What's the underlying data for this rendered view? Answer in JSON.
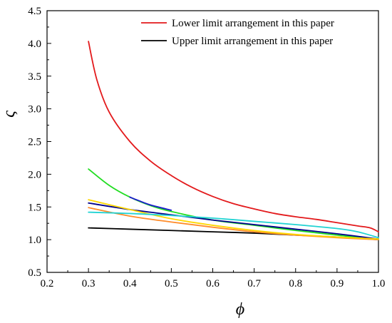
{
  "chart_data": {
    "type": "line",
    "title": "",
    "xlabel": "ϕ",
    "ylabel": "ς",
    "xlim": [
      0.2,
      1.0
    ],
    "ylim": [
      0.5,
      4.5
    ],
    "x_ticks": [
      "0.2",
      "0.3",
      "0.4",
      "0.5",
      "0.6",
      "0.7",
      "0.8",
      "0.9",
      "1.0"
    ],
    "y_ticks": [
      "0.5",
      "1.0",
      "1.5",
      "2.0",
      "2.5",
      "3.0",
      "3.5",
      "4.0",
      "4.5"
    ],
    "legend_position": "top-right",
    "grid": false,
    "series": [
      {
        "name": "Lower limit arrangement in this paper",
        "color": "#e31a1c",
        "in_legend": true,
        "points": [
          [
            0.3,
            4.03
          ],
          [
            0.32,
            3.45
          ],
          [
            0.35,
            2.95
          ],
          [
            0.4,
            2.5
          ],
          [
            0.45,
            2.2
          ],
          [
            0.5,
            1.98
          ],
          [
            0.55,
            1.8
          ],
          [
            0.6,
            1.66
          ],
          [
            0.65,
            1.55
          ],
          [
            0.7,
            1.47
          ],
          [
            0.75,
            1.4
          ],
          [
            0.8,
            1.35
          ],
          [
            0.85,
            1.31
          ],
          [
            0.9,
            1.26
          ],
          [
            0.95,
            1.21
          ],
          [
            0.98,
            1.18
          ],
          [
            1.0,
            1.12
          ]
        ]
      },
      {
        "name": "Upper limit arrangement in this paper",
        "color": "#000000",
        "in_legend": true,
        "points": [
          [
            0.3,
            1.18
          ],
          [
            0.4,
            1.16
          ],
          [
            0.5,
            1.14
          ],
          [
            0.6,
            1.12
          ],
          [
            0.7,
            1.1
          ],
          [
            0.8,
            1.07
          ],
          [
            0.9,
            1.04
          ],
          [
            1.0,
            1.0
          ]
        ]
      },
      {
        "color": "#22dd22",
        "in_legend": false,
        "points": [
          [
            0.3,
            2.08
          ],
          [
            0.35,
            1.83
          ],
          [
            0.4,
            1.65
          ],
          [
            0.45,
            1.52
          ],
          [
            0.5,
            1.43
          ],
          [
            0.6,
            1.3
          ],
          [
            0.7,
            1.22
          ],
          [
            0.8,
            1.14
          ],
          [
            0.9,
            1.07
          ],
          [
            1.0,
            1.0
          ]
        ]
      },
      {
        "color": "#00008b",
        "in_legend": false,
        "points": [
          [
            0.3,
            1.56
          ],
          [
            0.4,
            1.46
          ],
          [
            0.5,
            1.38
          ],
          [
            0.6,
            1.3
          ],
          [
            0.7,
            1.23
          ],
          [
            0.8,
            1.16
          ],
          [
            0.9,
            1.09
          ],
          [
            1.0,
            1.01
          ]
        ]
      },
      {
        "color": "#1a1acc",
        "in_legend": false,
        "points": [
          [
            0.4,
            1.65
          ],
          [
            0.42,
            1.6
          ],
          [
            0.45,
            1.53
          ],
          [
            0.5,
            1.45
          ]
        ]
      },
      {
        "color": "#ff8c2a",
        "in_legend": false,
        "points": [
          [
            0.3,
            1.49
          ],
          [
            0.4,
            1.36
          ],
          [
            0.5,
            1.27
          ],
          [
            0.6,
            1.19
          ],
          [
            0.7,
            1.12
          ],
          [
            0.8,
            1.07
          ],
          [
            0.9,
            1.03
          ],
          [
            1.0,
            1.0
          ]
        ]
      },
      {
        "color": "#ffd700",
        "in_legend": false,
        "points": [
          [
            0.3,
            1.61
          ],
          [
            0.4,
            1.46
          ],
          [
            0.5,
            1.32
          ],
          [
            0.6,
            1.22
          ],
          [
            0.7,
            1.14
          ],
          [
            0.8,
            1.08
          ],
          [
            0.9,
            1.04
          ],
          [
            1.0,
            1.01
          ]
        ]
      },
      {
        "color": "#22d3d3",
        "in_legend": false,
        "points": [
          [
            0.3,
            1.42
          ],
          [
            0.4,
            1.4
          ],
          [
            0.5,
            1.37
          ],
          [
            0.6,
            1.33
          ],
          [
            0.7,
            1.28
          ],
          [
            0.8,
            1.23
          ],
          [
            0.9,
            1.17
          ],
          [
            0.95,
            1.12
          ],
          [
            1.0,
            1.03
          ]
        ]
      }
    ]
  }
}
